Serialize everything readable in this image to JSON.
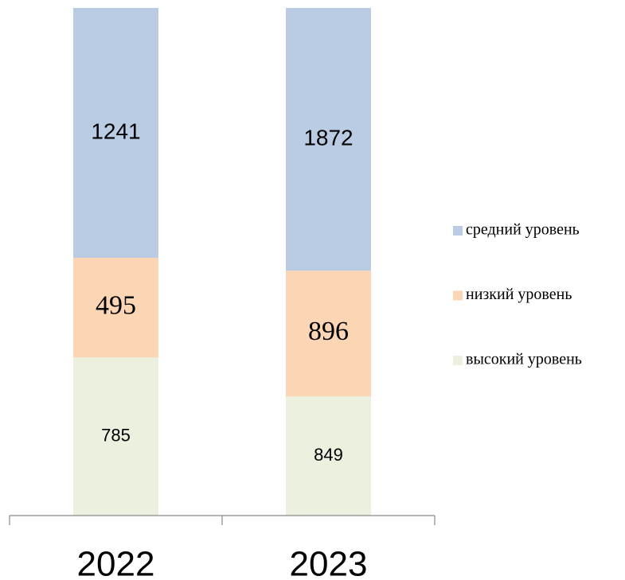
{
  "chart_data": {
    "type": "bar",
    "stacking": "percent",
    "categories": [
      "2022",
      "2023"
    ],
    "series": [
      {
        "name": "высокий уровень",
        "color": "#ebf1de",
        "values": [
          785,
          849
        ]
      },
      {
        "name": "низкий уровень",
        "color": "#fcd5b5",
        "values": [
          495,
          896
        ]
      },
      {
        "name": "средний уровень",
        "color": "#b9cce4",
        "values": [
          1241,
          1872
        ]
      }
    ]
  }
}
